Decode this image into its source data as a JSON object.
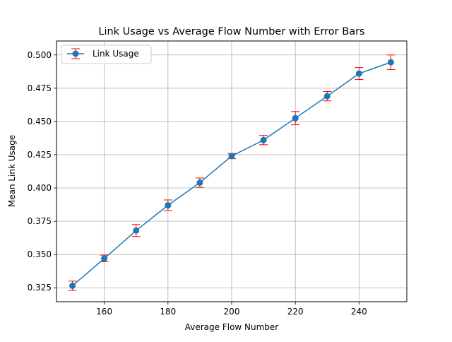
{
  "chart_data": {
    "type": "line",
    "title": "Link Usage vs Average Flow Number with Error Bars",
    "xlabel": "Average Flow Number",
    "ylabel": "Mean Link Usage",
    "xlim": [
      145,
      255
    ],
    "ylim": [
      0.3145,
      0.5105
    ],
    "xticks": [
      160,
      180,
      200,
      220,
      240
    ],
    "xtick_labels": [
      "160",
      "180",
      "200",
      "220",
      "240"
    ],
    "yticks": [
      0.325,
      0.35,
      0.375,
      0.4,
      0.425,
      0.45,
      0.475,
      0.5
    ],
    "ytick_labels": [
      "0.325",
      "0.350",
      "0.375",
      "0.400",
      "0.425",
      "0.450",
      "0.475",
      "0.500"
    ],
    "grid": true,
    "legend_position": "top-left",
    "series": [
      {
        "name": "Link Usage",
        "color": "#1f77b4",
        "error_color": "#ff0000",
        "marker": "circle",
        "x": [
          150,
          160,
          170,
          180,
          190,
          200,
          210,
          220,
          230,
          240,
          250
        ],
        "y": [
          0.3265,
          0.347,
          0.368,
          0.387,
          0.404,
          0.424,
          0.436,
          0.4525,
          0.469,
          0.486,
          0.4945
        ],
        "error": [
          0.0035,
          0.0025,
          0.0045,
          0.004,
          0.0035,
          0.002,
          0.0035,
          0.005,
          0.0035,
          0.0045,
          0.0055
        ]
      }
    ]
  }
}
